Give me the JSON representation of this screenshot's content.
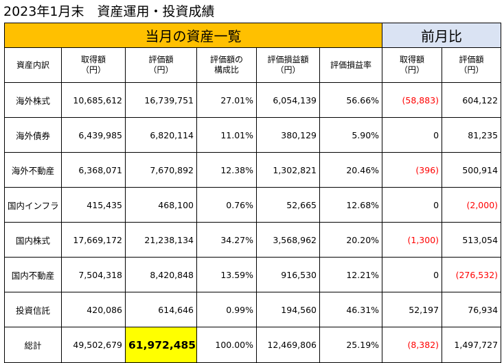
{
  "title": "2023年1月末　資産運用・投資成績",
  "bands": {
    "current": "当月の資産一覧",
    "previous": "前月比"
  },
  "columns": [
    "資産内訳",
    "取得額\n（円）",
    "評価額\n（円）",
    "評価額の\n構成比",
    "評価損益額\n（円）",
    "評価損益率",
    "取得額\n（円）",
    "評価額\n（円）"
  ],
  "rows": [
    {
      "category": "海外株式",
      "acq": "10,685,612",
      "val": "16,739,751",
      "ratio": "27.01%",
      "pl": "6,054,139",
      "plr": "56.66%",
      "d_acq": "(58,883)",
      "d_val": "604,122"
    },
    {
      "category": "海外債券",
      "acq": "6,439,985",
      "val": "6,820,114",
      "ratio": "11.01%",
      "pl": "380,129",
      "plr": "5.90%",
      "d_acq": "0",
      "d_val": "81,235"
    },
    {
      "category": "海外不動産",
      "acq": "6,368,071",
      "val": "7,670,892",
      "ratio": "12.38%",
      "pl": "1,302,821",
      "plr": "20.46%",
      "d_acq": "(396)",
      "d_val": "500,914"
    },
    {
      "category": "国内インフラ",
      "acq": "415,435",
      "val": "468,100",
      "ratio": "0.76%",
      "pl": "52,665",
      "plr": "12.68%",
      "d_acq": "0",
      "d_val": "(2,000)"
    },
    {
      "category": "国内株式",
      "acq": "17,669,172",
      "val": "21,238,134",
      "ratio": "34.27%",
      "pl": "3,568,962",
      "plr": "20.20%",
      "d_acq": "(1,300)",
      "d_val": "513,054"
    },
    {
      "category": "国内不動産",
      "acq": "7,504,318",
      "val": "8,420,848",
      "ratio": "13.59%",
      "pl": "916,530",
      "plr": "12.21%",
      "d_acq": "0",
      "d_val": "(276,532)"
    },
    {
      "category": "投資信託",
      "acq": "420,086",
      "val": "614,646",
      "ratio": "0.99%",
      "pl": "194,560",
      "plr": "46.31%",
      "d_acq": "52,197",
      "d_val": "76,934"
    },
    {
      "category": "総計",
      "acq": "49,502,679",
      "val": "61,972,485",
      "ratio": "100.00%",
      "pl": "12,469,806",
      "plr": "25.19%",
      "d_acq": "(8,382)",
      "d_val": "1,497,727"
    }
  ],
  "colors": {
    "current_band": "#FFC000",
    "previous_band": "#DAE3F3",
    "total_highlight": "#FFFF00",
    "negative_text": "#FF0000"
  }
}
